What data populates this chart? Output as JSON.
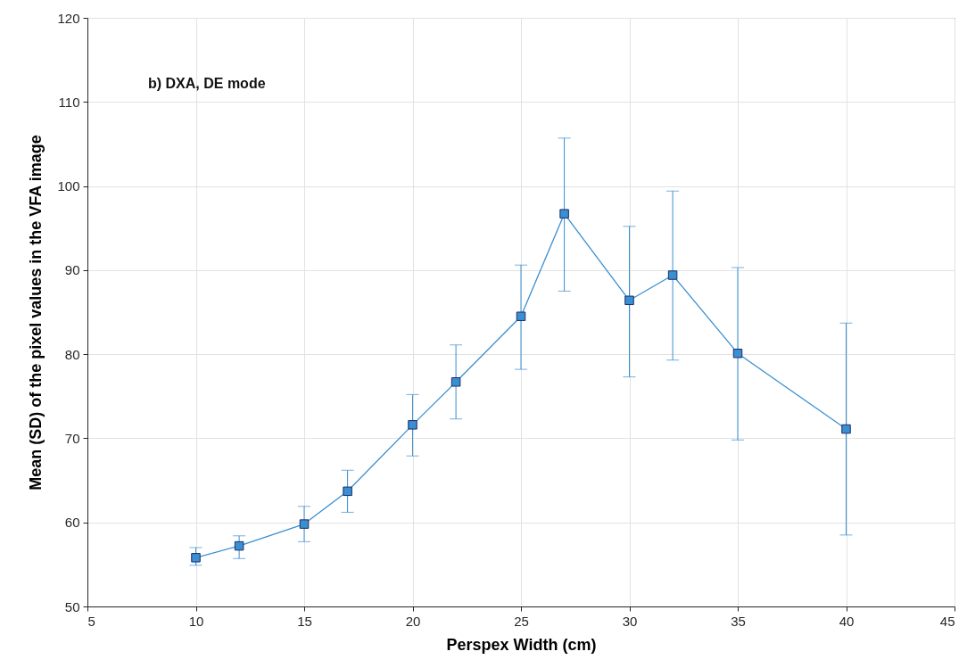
{
  "chart_data": {
    "type": "line",
    "xlabel": "Perspex Width (cm)",
    "ylabel": "Mean (SD) of the pixel values in the VFA image",
    "annotations": [
      "b) DXA, DE mode"
    ],
    "x": [
      10,
      12,
      15,
      17,
      20,
      22,
      25,
      27,
      30,
      32,
      35,
      40
    ],
    "series": [
      {
        "color": "#3a8fd0",
        "values": [
          55.8,
          57.2,
          59.8,
          63.7,
          71.6,
          76.7,
          84.5,
          96.7,
          86.4,
          89.4,
          80.1,
          71.1
        ],
        "errors": [
          [
            54.9,
            57.0
          ],
          [
            55.7,
            58.4
          ],
          [
            57.7,
            61.9
          ],
          [
            61.2,
            66.2
          ],
          [
            67.9,
            75.2
          ],
          [
            72.3,
            81.1
          ],
          [
            78.2,
            90.6
          ],
          [
            87.5,
            105.7
          ],
          [
            77.3,
            95.2
          ],
          [
            79.3,
            99.4
          ],
          [
            69.8,
            90.3
          ],
          [
            58.5,
            83.7
          ]
        ]
      }
    ],
    "xlim": [
      5,
      45
    ],
    "xticks": [
      5,
      10,
      15,
      20,
      25,
      30,
      35,
      40,
      45
    ],
    "ylim": [
      50,
      120
    ],
    "yticks": [
      50,
      60,
      70,
      80,
      90,
      100,
      110,
      120
    ],
    "grid": true,
    "marker": "square",
    "line_style": "solid"
  }
}
